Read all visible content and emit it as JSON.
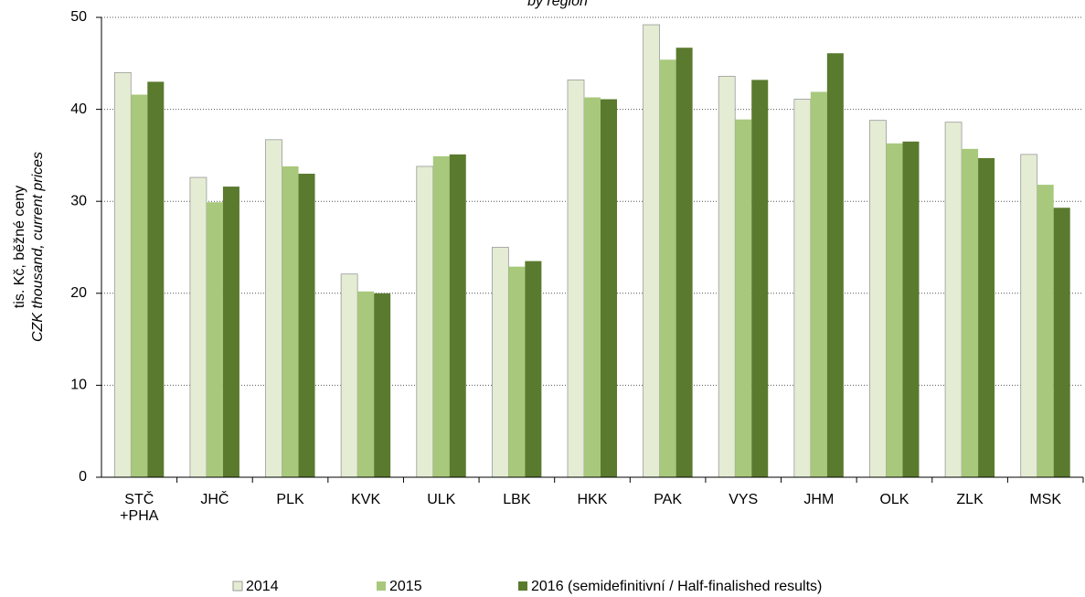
{
  "chart_data": {
    "type": "bar",
    "subtitle": "by region",
    "y_label": "tis. Kč, běžné ceny",
    "y_label_2": "CZK thousand, current prices",
    "categories": [
      "STČ\n+PHA",
      "JHČ",
      "PLK",
      "KVK",
      "ULK",
      "LBK",
      "HKK",
      "PAK",
      "VYS",
      "JHM",
      "OLK",
      "ZLK",
      "MSK"
    ],
    "series": [
      {
        "name": "2014",
        "color": "#e4ecd4",
        "values": [
          44,
          32.6,
          36.7,
          22.1,
          33.8,
          25,
          43.2,
          49.2,
          43.6,
          41.1,
          38.8,
          38.6,
          35.1
        ]
      },
      {
        "name": "2015",
        "color": "#a8c87c",
        "values": [
          41.6,
          29.9,
          33.8,
          20.2,
          34.9,
          22.9,
          41.3,
          45.4,
          38.9,
          41.9,
          36.3,
          35.7,
          31.8
        ]
      },
      {
        "name": "2016 (semidefinitivní / Half-finalished results)",
        "color": "#5a7a2e",
        "values": [
          43,
          31.6,
          33,
          20,
          35.1,
          23.5,
          41.1,
          46.7,
          43.2,
          46.1,
          36.5,
          34.7,
          29.3
        ]
      }
    ],
    "ylim": [
      0,
      50
    ],
    "yticks": [
      0,
      10,
      20,
      30,
      40,
      50
    ],
    "grid": true
  }
}
